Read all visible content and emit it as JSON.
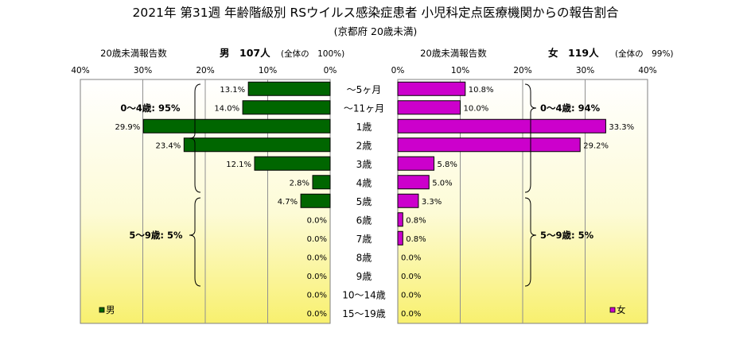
{
  "chart_data": {
    "type": "bar",
    "title": "2021年 第31週 年齢階級別 RSウイルス感染症患者 小児科定点医療機関からの報告割合",
    "subtitle": "(京都府 20歳未満)",
    "categories": [
      "～5ヶ月",
      "～11ヶ月",
      "1歳",
      "2歳",
      "3歳",
      "4歳",
      "5歳",
      "6歳",
      "7歳",
      "8歳",
      "9歳",
      "10～14歳",
      "15～19歳"
    ],
    "axis_ticks": [
      "40%",
      "30%",
      "20%",
      "10%",
      "0%",
      "0%",
      "10%",
      "20%",
      "30%",
      "40%"
    ],
    "xlim": [
      0,
      40
    ],
    "grid": true,
    "legend_position": "bottom",
    "series": [
      {
        "name": "男",
        "side": "left",
        "color": "#006600",
        "header_label": "20歳未満報告数",
        "header_count": "男　107人",
        "header_share": "(全体の　100%)",
        "values": [
          13.1,
          14.0,
          29.9,
          23.4,
          12.1,
          2.8,
          4.7,
          0.0,
          0.0,
          0.0,
          0.0,
          0.0,
          0.0
        ],
        "value_labels": [
          "13.1%",
          "14.0%",
          "29.9%",
          "23.4%",
          "12.1%",
          "2.8%",
          "4.7%",
          "0.0%",
          "0.0%",
          "0.0%",
          "0.0%",
          "0.0%",
          "0.0%"
        ],
        "group_labels": [
          "0～4歳: 95%",
          "5～9歳: 5%"
        ]
      },
      {
        "name": "女",
        "side": "right",
        "color": "#cc00cc",
        "header_label": "20歳未満報告数",
        "header_count": "女　119人",
        "header_share": "(全体の　99%)",
        "values": [
          10.8,
          10.0,
          33.3,
          29.2,
          5.8,
          5.0,
          3.3,
          0.8,
          0.8,
          0.0,
          0.0,
          0.0,
          0.0
        ],
        "value_labels": [
          "10.8%",
          "10.0%",
          "33.3%",
          "29.2%",
          "5.8%",
          "5.0%",
          "3.3%",
          "0.8%",
          "0.8%",
          "0.0%",
          "0.0%",
          "0.0%",
          "0.0%"
        ],
        "group_labels": [
          "0～4歳: 94%",
          "5～9歳: 5%"
        ]
      }
    ]
  }
}
